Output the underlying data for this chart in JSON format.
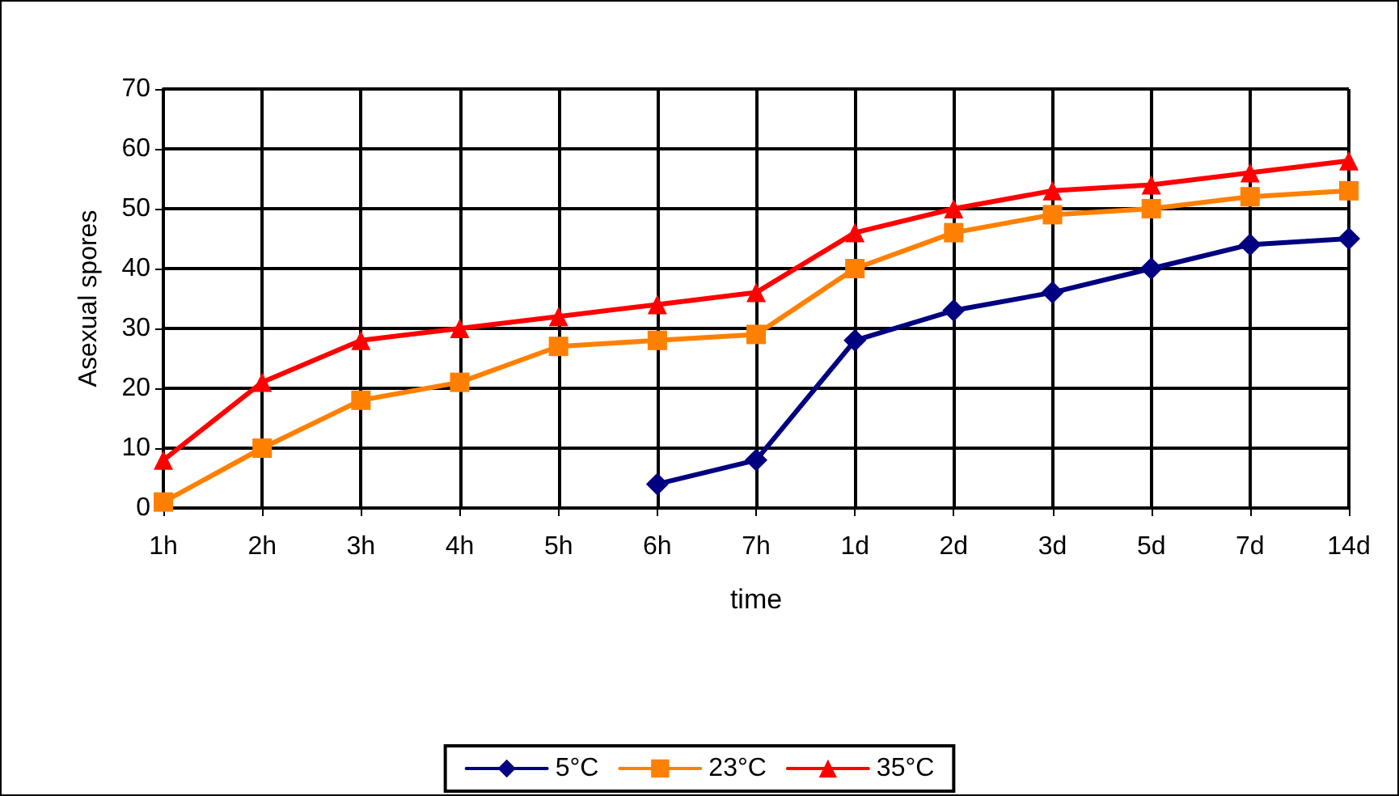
{
  "chart_data": {
    "type": "line",
    "xlabel": "time",
    "ylabel": "Asexual spores",
    "categories": [
      "1h",
      "2h",
      "3h",
      "4h",
      "5h",
      "6h",
      "7h",
      "1d",
      "2d",
      "3d",
      "5d",
      "7d",
      "14d"
    ],
    "series": [
      {
        "name": "5°C",
        "color": "#000080",
        "marker": "diamond",
        "values": [
          null,
          null,
          null,
          null,
          null,
          4,
          8,
          28,
          33,
          36,
          40,
          44,
          45
        ]
      },
      {
        "name": "23°C",
        "color": "#ff8000",
        "marker": "square",
        "values": [
          1,
          10,
          18,
          21,
          27,
          28,
          29,
          40,
          46,
          49,
          50,
          52,
          53
        ]
      },
      {
        "name": "35°C",
        "color": "#ff0000",
        "marker": "triangle",
        "values": [
          8,
          21,
          28,
          30,
          32,
          34,
          36,
          46,
          50,
          53,
          54,
          56,
          58
        ]
      }
    ],
    "ylim": [
      0,
      70
    ],
    "yticks": [
      0,
      10,
      20,
      30,
      40,
      50,
      60,
      70
    ],
    "grid": true,
    "legend": "bottom",
    "line_style": "solid"
  }
}
